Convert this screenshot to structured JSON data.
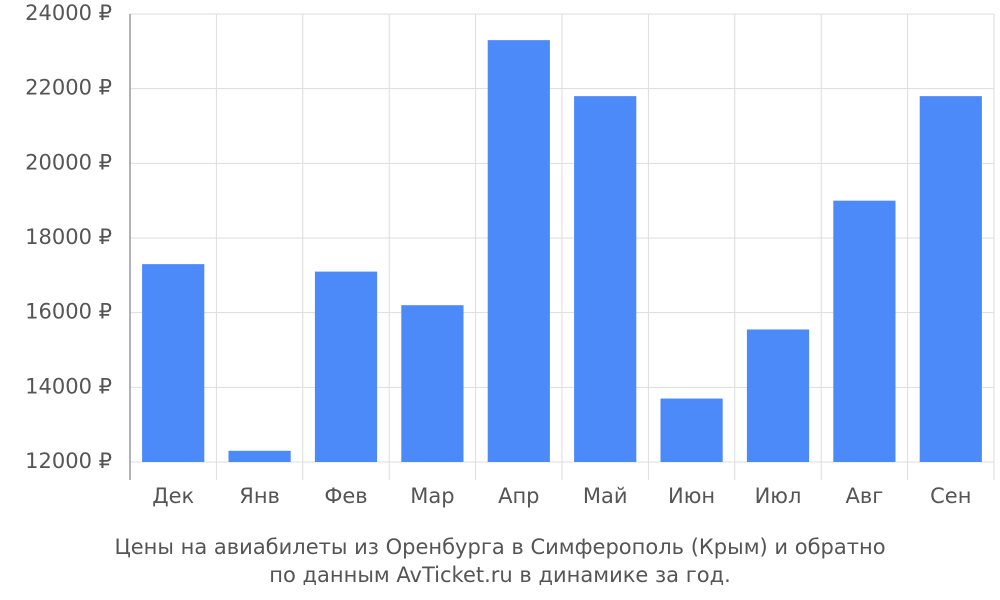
{
  "chart_data": {
    "type": "bar",
    "title": [
      "Цены на авиабилеты из Оренбурга в Симферополь (Крым) и обратно",
      "по данным AvTicket.ru в динамике за год."
    ],
    "categories": [
      "Дек",
      "Янв",
      "Фев",
      "Мар",
      "Апр",
      "Май",
      "Июн",
      "Июл",
      "Авг",
      "Сен"
    ],
    "values": [
      17300,
      12300,
      17100,
      16200,
      23300,
      21800,
      13700,
      15550,
      19000,
      21800
    ],
    "color": "#4d8af9",
    "ylim": [
      12000,
      24000
    ],
    "yticks": [
      {
        "value": 12000,
        "label": "12000 ₽"
      },
      {
        "value": 14000,
        "label": "14000 ₽"
      },
      {
        "value": 16000,
        "label": "16000 ₽"
      },
      {
        "value": 18000,
        "label": "18000 ₽"
      },
      {
        "value": 20000,
        "label": "20000 ₽"
      },
      {
        "value": 22000,
        "label": "22000 ₽"
      },
      {
        "value": 24000,
        "label": "24000 ₽"
      }
    ],
    "grid": true
  }
}
